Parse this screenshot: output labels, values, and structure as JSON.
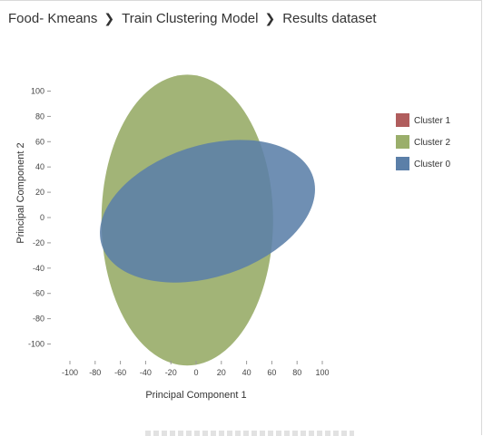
{
  "breadcrumb": {
    "items": [
      {
        "label": "Food- Kmeans"
      },
      {
        "label": "Train Clustering Model"
      },
      {
        "label": "Results dataset"
      }
    ],
    "separator": "❯"
  },
  "chart_data": {
    "type": "scatter",
    "xlabel": "Principal Component 1",
    "ylabel": "Principal Component 2",
    "xlim": [
      -100,
      100
    ],
    "ylim": [
      -100,
      100
    ],
    "xticks": [
      -100,
      -80,
      -60,
      -40,
      -20,
      0,
      20,
      40,
      60,
      80,
      100
    ],
    "yticks": [
      100,
      80,
      60,
      40,
      20,
      0,
      -20,
      -40,
      -60,
      -80,
      -100
    ],
    "grid": false,
    "legend_position": "right",
    "series": [
      {
        "name": "Cluster 1",
        "color": "#b05d5d",
        "ellipses": []
      },
      {
        "name": "Cluster 2",
        "color": "#9aae6b",
        "ellipses": [
          {
            "cx": -7,
            "cy": -2,
            "rx": 68,
            "ry": 115,
            "angle": 0
          }
        ]
      },
      {
        "name": "Cluster 0",
        "color": "#5b7fa8",
        "ellipses": [
          {
            "cx": 9,
            "cy": 5,
            "rx": 88,
            "ry": 52,
            "angle": -18
          }
        ]
      }
    ]
  }
}
